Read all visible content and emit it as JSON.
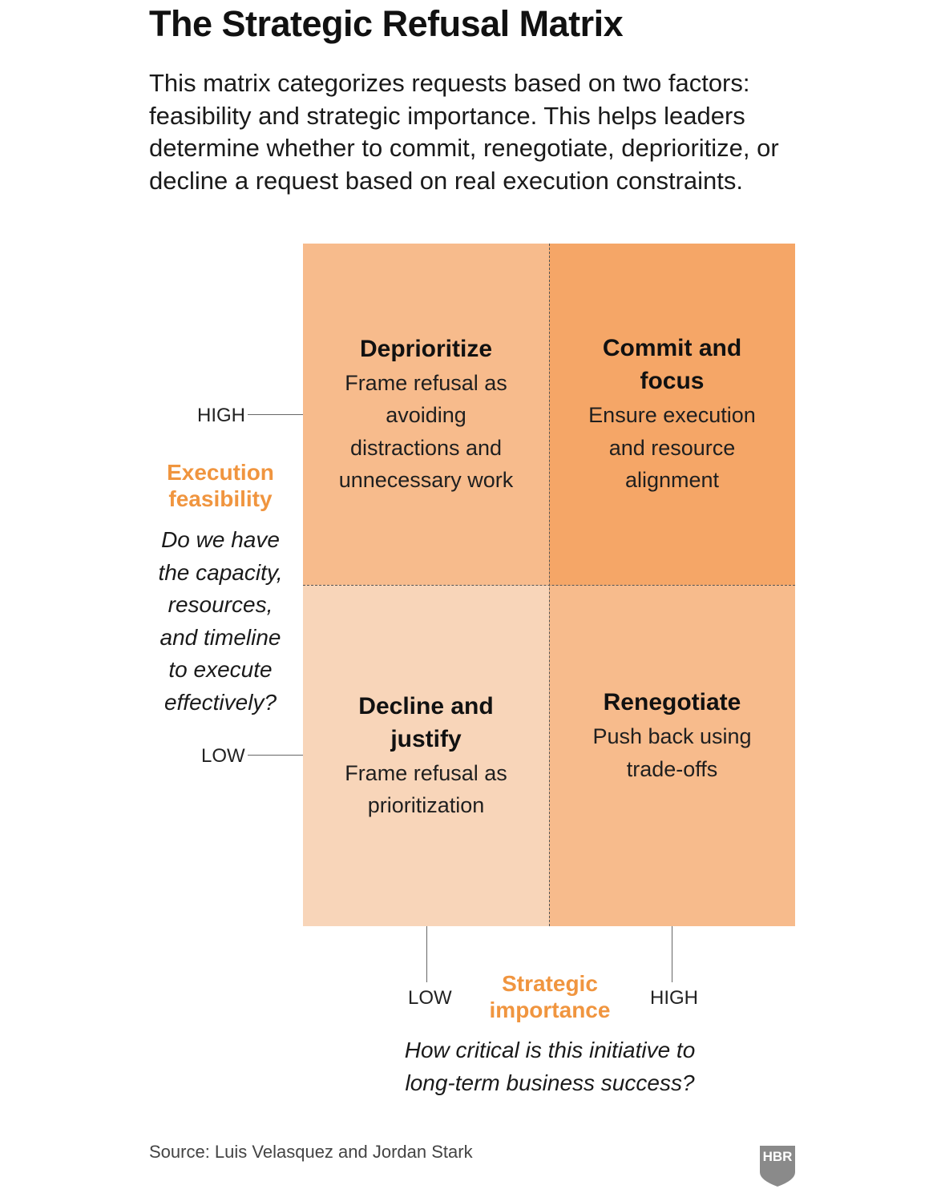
{
  "title": "The Strategic Refusal Matrix",
  "intro": "This matrix categorizes requests based on two factors: feasibility and strategic importance. This helps leaders determine whether to commit, renegotiate, deprioritize, or decline a request based on real execution constraints.",
  "quadrants": {
    "top_left": {
      "title": "Deprioritize",
      "description": "Frame refusal as avoiding distractions and unnecessary work"
    },
    "top_right": {
      "title": "Commit and focus",
      "description": "Ensure execution and resource alignment"
    },
    "bottom_left": {
      "title": "Decline and justify",
      "description": "Frame refusal as prioritization"
    },
    "bottom_right": {
      "title": "Renegotiate",
      "description": "Push back using trade-offs"
    }
  },
  "y_axis": {
    "name": "Execution feasibility",
    "question": "Do we have the capacity, resources, and timeline to execute effectively?",
    "high_label": "HIGH",
    "low_label": "LOW"
  },
  "x_axis": {
    "name": "Strategic importance",
    "question": "How critical is this initiative to long-term business success?",
    "low_label": "LOW",
    "high_label": "HIGH"
  },
  "source": "Source: Luis Velasquez and Jordan Stark",
  "logo": {
    "text": "HBR",
    "color": "#8a8a8a"
  },
  "colors": {
    "accent": "#f0953f",
    "quadrant_top_right": "#f5a667",
    "quadrant_mid": "#f7bb8c",
    "quadrant_bottom_left": "#f8d5b9"
  }
}
